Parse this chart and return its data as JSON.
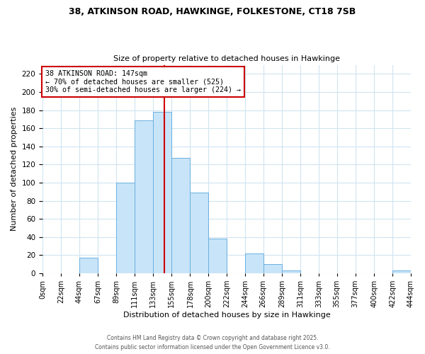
{
  "title_line1": "38, ATKINSON ROAD, HAWKINGE, FOLKESTONE, CT18 7SB",
  "title_line2": "Size of property relative to detached houses in Hawkinge",
  "xlabel": "Distribution of detached houses by size in Hawkinge",
  "ylabel": "Number of detached properties",
  "bar_edges": [
    0,
    22,
    44,
    67,
    89,
    111,
    133,
    155,
    178,
    200,
    222,
    244,
    266,
    289,
    311,
    333,
    355,
    377,
    400,
    422,
    444
  ],
  "bar_heights": [
    0,
    0,
    17,
    0,
    100,
    169,
    178,
    127,
    89,
    38,
    0,
    22,
    10,
    3,
    0,
    0,
    0,
    0,
    0,
    3
  ],
  "bar_color": "#c8e4f8",
  "bar_edge_color": "#6ab0e0",
  "vline_x": 147,
  "vline_color": "#cc0000",
  "annotation_text": "38 ATKINSON ROAD: 147sqm\n← 70% of detached houses are smaller (525)\n30% of semi-detached houses are larger (224) →",
  "annotation_box_color": "#ffffff",
  "annotation_box_edge_color": "#cc0000",
  "ylim": [
    0,
    230
  ],
  "yticks": [
    0,
    20,
    40,
    60,
    80,
    100,
    120,
    140,
    160,
    180,
    200,
    220
  ],
  "xtick_labels": [
    "0sqm",
    "22sqm",
    "44sqm",
    "67sqm",
    "89sqm",
    "111sqm",
    "133sqm",
    "155sqm",
    "178sqm",
    "200sqm",
    "222sqm",
    "244sqm",
    "266sqm",
    "289sqm",
    "311sqm",
    "333sqm",
    "355sqm",
    "377sqm",
    "400sqm",
    "422sqm",
    "444sqm"
  ],
  "grid_color": "#d0e4f0",
  "footnote1": "Contains HM Land Registry data © Crown copyright and database right 2025.",
  "footnote2": "Contains public sector information licensed under the Open Government Licence v3.0.",
  "bg_color": "#ffffff"
}
